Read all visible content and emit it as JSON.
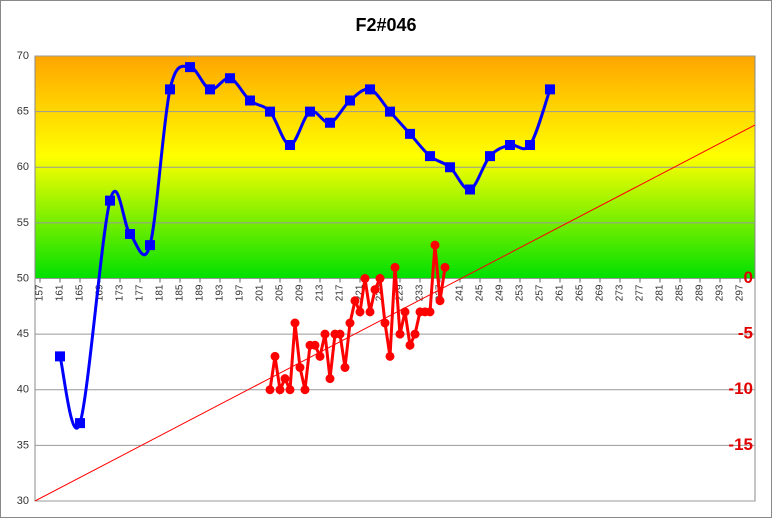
{
  "chart_data": {
    "type": "line",
    "title": "F2#046",
    "xlim": [
      156,
      300
    ],
    "xticks": [
      157,
      161,
      165,
      169,
      173,
      177,
      181,
      185,
      189,
      193,
      197,
      201,
      205,
      209,
      213,
      217,
      221,
      225,
      229,
      233,
      237,
      241,
      245,
      249,
      253,
      257,
      261,
      265,
      269,
      273,
      277,
      281,
      285,
      289,
      293,
      297
    ],
    "ylim": [
      30,
      70
    ],
    "yticks": [
      30,
      35,
      40,
      45,
      50,
      55,
      60,
      65,
      70
    ],
    "y2lim": [
      -20,
      20
    ],
    "y2ticks": [
      0,
      -5,
      -10,
      -15
    ],
    "grid": true,
    "series": [
      {
        "color": "#0000ff",
        "marker": "square",
        "x": [
          161,
          165,
          171,
          175,
          179,
          183,
          187,
          191,
          195,
          199,
          203,
          207,
          211,
          215,
          219,
          223,
          227,
          231,
          235,
          239,
          243,
          247,
          251,
          255,
          259
        ],
        "values": [
          43,
          37,
          57,
          54,
          53,
          67,
          69,
          67,
          68,
          66,
          65,
          62,
          65,
          64,
          66,
          67,
          65,
          63,
          61,
          60,
          58,
          61,
          62,
          62,
          67
        ]
      },
      {
        "color": "#ff0000",
        "marker": "circle",
        "axis": "y2",
        "x": [
          203,
          204,
          205,
          206,
          207,
          208,
          209,
          210,
          211,
          212,
          213,
          214,
          215,
          216,
          217,
          218,
          219,
          220,
          221,
          222,
          223,
          224,
          225,
          226,
          227,
          228,
          229,
          230,
          231,
          232,
          233,
          234,
          235,
          236,
          237,
          238
        ],
        "values": [
          -10,
          -7,
          -10,
          -9,
          -10,
          -4,
          -8,
          -10,
          -6,
          -6,
          -7,
          -5,
          -9,
          -5,
          -5,
          -8,
          -4,
          -2,
          -3,
          0,
          -3,
          -1,
          0,
          -4,
          -7,
          1,
          -5,
          -3,
          -6,
          -5,
          -3,
          -3,
          -3,
          3,
          -2,
          1
        ]
      },
      {
        "color": "#ff0000",
        "marker": "none",
        "x": [
          156,
          300
        ],
        "values": [
          30,
          63.8
        ]
      }
    ]
  }
}
